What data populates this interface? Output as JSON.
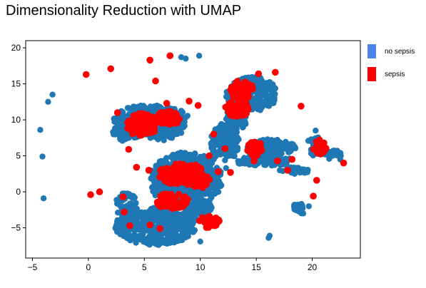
{
  "title": "Dimensionality Reduction with UMAP",
  "chart_data": {
    "type": "scatter",
    "title": "Dimensionality Reduction with UMAP",
    "xlabel": "",
    "ylabel": "",
    "xlim": [
      -5.6,
      24.3
    ],
    "ylim": [
      -9.2,
      21.0
    ],
    "xticks": [
      -5,
      0,
      5,
      10,
      15,
      20
    ],
    "yticks": [
      -5,
      0,
      5,
      10,
      15,
      20
    ],
    "legend_position": "right",
    "series": [
      {
        "name": "no sepsis",
        "color": "#1f77b4",
        "legend_color": "#4a86e8",
        "regions": [
          {
            "x": 5.6,
            "y": 10.0,
            "rx": 3.4,
            "ry": 2.1
          },
          {
            "x": 3.4,
            "y": 8.3,
            "rx": 1.2,
            "ry": 1.3
          },
          {
            "x": 6.8,
            "y": 8.0,
            "rx": 1.6,
            "ry": 0.9
          },
          {
            "x": 8.7,
            "y": 1.6,
            "rx": 3.3,
            "ry": 3.9
          },
          {
            "x": 6.0,
            "y": -4.8,
            "rx": 3.6,
            "ry": 2.6
          },
          {
            "x": 3.4,
            "y": -1.9,
            "rx": 1.0,
            "ry": 1.8
          },
          {
            "x": 10.0,
            "y": -2.7,
            "rx": 1.3,
            "ry": 1.5
          },
          {
            "x": 12.2,
            "y": 6.9,
            "rx": 1.3,
            "ry": 2.6
          },
          {
            "x": 14.6,
            "y": 13.6,
            "rx": 2.3,
            "ry": 2.4
          },
          {
            "x": 13.3,
            "y": 10.3,
            "rx": 1.0,
            "ry": 1.6
          },
          {
            "x": 16.2,
            "y": 6.2,
            "rx": 2.4,
            "ry": 1.1
          },
          {
            "x": 15.6,
            "y": 4.3,
            "rx": 2.7,
            "ry": 0.7
          },
          {
            "x": 18.6,
            "y": 3.0,
            "rx": 1.5,
            "ry": 0.5
          },
          {
            "x": 20.3,
            "y": 6.3,
            "rx": 0.8,
            "ry": 1.4
          },
          {
            "x": 21.7,
            "y": 5.2,
            "rx": 0.9,
            "ry": 0.7
          },
          {
            "x": 18.8,
            "y": -2.3,
            "rx": 0.5,
            "ry": 0.9
          }
        ],
        "points": [
          [
            -3.6,
            12.5
          ],
          [
            -3.2,
            13.5
          ],
          [
            -4.3,
            8.6
          ],
          [
            -4.1,
            4.9
          ],
          [
            -4.0,
            -0.9
          ],
          [
            8.3,
            18.7
          ],
          [
            8.7,
            18.5
          ],
          [
            9.9,
            18.9
          ],
          [
            16.2,
            -6.1
          ],
          [
            16.1,
            -6.4
          ],
          [
            10.0,
            -6.9
          ],
          [
            20.3,
            8.5
          ],
          [
            21.8,
            5.0
          ],
          [
            22.5,
            4.5
          ],
          [
            19.7,
            -2.0
          ],
          [
            19.2,
            -3.0
          ],
          [
            18.4,
            -2.3
          ],
          [
            10.1,
            3.0
          ],
          [
            11.2,
            4.5
          ],
          [
            12.3,
            3.3
          ]
        ]
      },
      {
        "name": "sepsis",
        "color": "#ff0000",
        "legend_color": "#ff0000",
        "regions": [
          {
            "x": 4.8,
            "y": 9.3,
            "rx": 1.4,
            "ry": 1.6
          },
          {
            "x": 7.2,
            "y": 10.3,
            "rx": 1.1,
            "ry": 1.0
          },
          {
            "x": 8.3,
            "y": 2.5,
            "rx": 2.0,
            "ry": 1.6
          },
          {
            "x": 7.5,
            "y": -1.3,
            "rx": 1.4,
            "ry": 1.2
          },
          {
            "x": 10.0,
            "y": 1.5,
            "rx": 1.0,
            "ry": 1.0
          },
          {
            "x": 10.8,
            "y": -4.2,
            "rx": 0.9,
            "ry": 0.9
          },
          {
            "x": 13.7,
            "y": 14.2,
            "rx": 1.0,
            "ry": 1.4
          },
          {
            "x": 13.3,
            "y": 11.6,
            "rx": 1.1,
            "ry": 1.2
          },
          {
            "x": 15.0,
            "y": 6.0,
            "rx": 0.8,
            "ry": 1.0
          },
          {
            "x": 20.7,
            "y": 6.2,
            "rx": 0.6,
            "ry": 1.1
          }
        ],
        "points": [
          [
            -0.2,
            16.3
          ],
          [
            2.0,
            17.1
          ],
          [
            5.5,
            18.3
          ],
          [
            7.3,
            18.9
          ],
          [
            6.0,
            15.4
          ],
          [
            9.0,
            12.6
          ],
          [
            7.0,
            12.3
          ],
          [
            9.8,
            12.0
          ],
          [
            19.0,
            11.9
          ],
          [
            16.7,
            16.6
          ],
          [
            15.2,
            16.4
          ],
          [
            0.2,
            -0.4
          ],
          [
            1.0,
            0.0
          ],
          [
            3.1,
            -0.7
          ],
          [
            3.2,
            -2.8
          ],
          [
            3.7,
            -4.7
          ],
          [
            5.5,
            -4.6
          ],
          [
            6.4,
            -5.1
          ],
          [
            18.2,
            4.5
          ],
          [
            20.1,
            -0.6
          ],
          [
            22.8,
            4.0
          ],
          [
            20.4,
            1.6
          ],
          [
            17.8,
            3.0
          ],
          [
            5.4,
            3.0
          ],
          [
            4.3,
            3.4
          ],
          [
            11.6,
            2.8
          ],
          [
            12.7,
            2.7
          ],
          [
            14.8,
            4.3
          ],
          [
            16.9,
            4.3
          ],
          [
            12.2,
            6.0
          ],
          [
            10.8,
            5.0
          ],
          [
            11.2,
            8.0
          ],
          [
            14.0,
            11.0
          ],
          [
            3.6,
            5.9
          ],
          [
            2.6,
            11.0
          ]
        ]
      }
    ]
  },
  "legend": [
    {
      "label": "no sepsis",
      "color": "#4a86e8"
    },
    {
      "label": "sepsis",
      "color": "#ff0000"
    }
  ]
}
